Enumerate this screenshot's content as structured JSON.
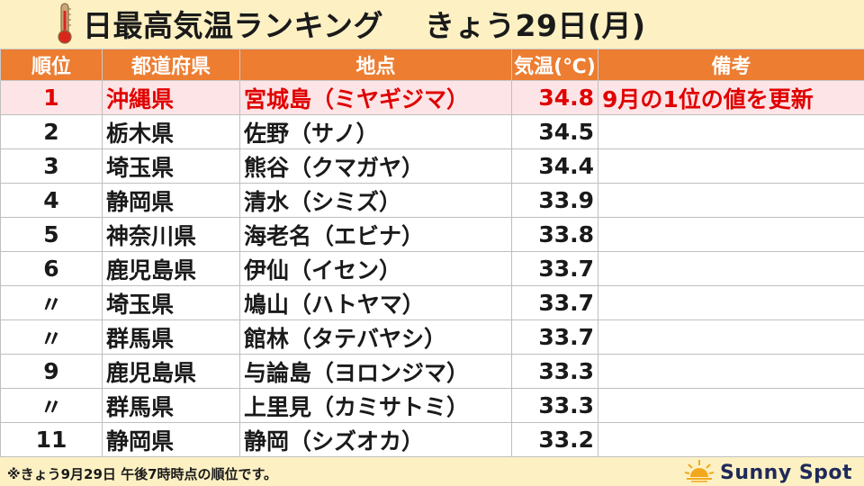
{
  "title": {
    "main": "日最高気温ランキング",
    "date": "きょう29日(月)"
  },
  "table": {
    "headers": {
      "rank": "順位",
      "prefecture": "都道府県",
      "location": "地点",
      "temp": "気温(℃)",
      "note": "備考"
    },
    "rows": [
      {
        "rank": "1",
        "prefecture": "沖縄県",
        "location": "宮城島（ミヤギジマ）",
        "temp": "34.8",
        "note": "9月の1位の値を更新"
      },
      {
        "rank": "2",
        "prefecture": "栃木県",
        "location": "佐野（サノ）",
        "temp": "34.5",
        "note": ""
      },
      {
        "rank": "3",
        "prefecture": "埼玉県",
        "location": "熊谷（クマガヤ）",
        "temp": "34.4",
        "note": ""
      },
      {
        "rank": "4",
        "prefecture": "静岡県",
        "location": "清水（シミズ）",
        "temp": "33.9",
        "note": ""
      },
      {
        "rank": "5",
        "prefecture": "神奈川県",
        "location": "海老名（エビナ）",
        "temp": "33.8",
        "note": ""
      },
      {
        "rank": "6",
        "prefecture": "鹿児島県",
        "location": "伊仙（イセン）",
        "temp": "33.7",
        "note": ""
      },
      {
        "rank": "〃",
        "prefecture": "埼玉県",
        "location": "鳩山（ハトヤマ）",
        "temp": "33.7",
        "note": ""
      },
      {
        "rank": "〃",
        "prefecture": "群馬県",
        "location": "館林（タテバヤシ）",
        "temp": "33.7",
        "note": ""
      },
      {
        "rank": "9",
        "prefecture": "鹿児島県",
        "location": "与論島（ヨロンジマ）",
        "temp": "33.3",
        "note": ""
      },
      {
        "rank": "〃",
        "prefecture": "群馬県",
        "location": "上里見（カミサトミ）",
        "temp": "33.3",
        "note": ""
      },
      {
        "rank": "11",
        "prefecture": "静岡県",
        "location": "静岡（シズオカ）",
        "temp": "33.2",
        "note": ""
      }
    ]
  },
  "footnote": "※きょう9月29日 午後7時時点の順位です。",
  "logo": "Sunny Spot",
  "icons": {
    "title": "thermometer-icon",
    "logo": "sunrise-icon"
  },
  "colors": {
    "header_bg": "#ec7d31",
    "highlight_text": "#e00000",
    "highlight_row_bg": "#fde4e6",
    "page_bg": "#fdf1c4"
  }
}
